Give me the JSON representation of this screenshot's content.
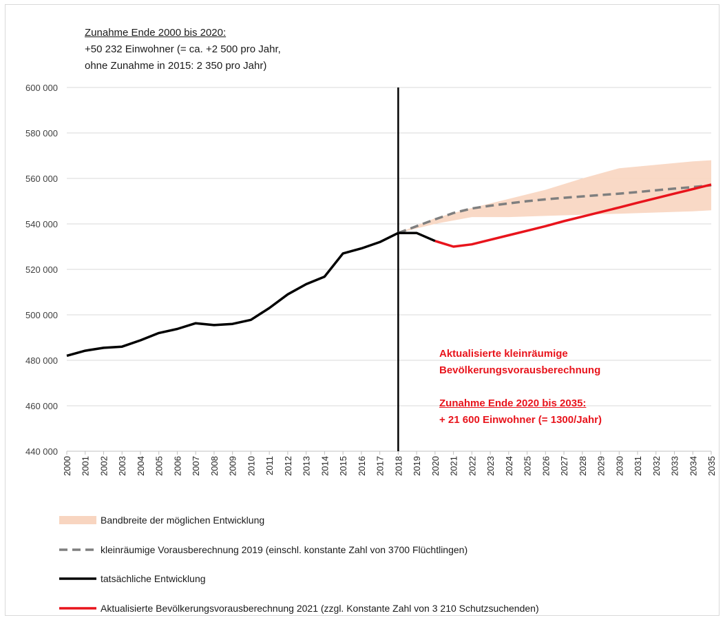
{
  "chart_data": {
    "type": "line",
    "x": [
      2000,
      2001,
      2002,
      2003,
      2004,
      2005,
      2006,
      2007,
      2008,
      2009,
      2010,
      2011,
      2012,
      2013,
      2014,
      2015,
      2016,
      2017,
      2018,
      2019,
      2020,
      2021,
      2022,
      2023,
      2024,
      2025,
      2026,
      2027,
      2028,
      2029,
      2030,
      2031,
      2032,
      2033,
      2034,
      2035
    ],
    "ylim": [
      440000,
      600000
    ],
    "yticks": [
      440000,
      460000,
      480000,
      500000,
      520000,
      540000,
      560000,
      580000,
      600000
    ],
    "ytick_labels": [
      "440 000",
      "460 000",
      "480 000",
      "500 000",
      "520 000",
      "540 000",
      "560 000",
      "580 000",
      "600 000"
    ],
    "grid": "horizontal",
    "vertical_marker_year": 2018,
    "series": [
      {
        "name": "tatsächliche Entwicklung",
        "style": "solid",
        "color": "#000000",
        "points": [
          [
            2000,
            482000
          ],
          [
            2001,
            484200
          ],
          [
            2002,
            485500
          ],
          [
            2003,
            486000
          ],
          [
            2004,
            488800
          ],
          [
            2005,
            492000
          ],
          [
            2006,
            493800
          ],
          [
            2007,
            496300
          ],
          [
            2008,
            495500
          ],
          [
            2009,
            496000
          ],
          [
            2010,
            497800
          ],
          [
            2011,
            503000
          ],
          [
            2012,
            509000
          ],
          [
            2013,
            513500
          ],
          [
            2014,
            516800
          ],
          [
            2015,
            527000
          ],
          [
            2016,
            529200
          ],
          [
            2017,
            532000
          ],
          [
            2018,
            536000
          ],
          [
            2019,
            536000
          ],
          [
            2020,
            532500
          ]
        ]
      },
      {
        "name": "Aktualisierte Bevölkerungsvorausberechnung 2021 (zzgl. Konstante Zahl von 3 210 Schutzsuchenden)",
        "style": "solid",
        "color": "#e8141c",
        "points": [
          [
            2020,
            532500
          ],
          [
            2021,
            530000
          ],
          [
            2022,
            531000
          ],
          [
            2023,
            533000
          ],
          [
            2024,
            535000
          ],
          [
            2025,
            537000
          ],
          [
            2026,
            539000
          ],
          [
            2027,
            541200
          ],
          [
            2028,
            543200
          ],
          [
            2029,
            545200
          ],
          [
            2030,
            547200
          ],
          [
            2031,
            549300
          ],
          [
            2032,
            551300
          ],
          [
            2033,
            553300
          ],
          [
            2034,
            555300
          ],
          [
            2035,
            557300
          ]
        ]
      },
      {
        "name": "kleinräumige Vorausberechnung 2019 (einschl. konstante Zahl von 3700 Flüchtlingen)",
        "style": "dashed",
        "color": "#7f7f7f",
        "points": [
          [
            2018,
            536000
          ],
          [
            2019,
            539000
          ],
          [
            2020,
            542000
          ],
          [
            2021,
            544800
          ],
          [
            2022,
            546800
          ],
          [
            2023,
            548000
          ],
          [
            2024,
            549000
          ],
          [
            2025,
            550000
          ],
          [
            2026,
            550800
          ],
          [
            2027,
            551500
          ],
          [
            2028,
            552100
          ],
          [
            2029,
            552700
          ],
          [
            2030,
            553300
          ],
          [
            2031,
            554000
          ],
          [
            2032,
            554800
          ],
          [
            2033,
            555500
          ],
          [
            2034,
            556200
          ],
          [
            2035,
            557000
          ]
        ]
      }
    ],
    "band": {
      "name": "Bandbreite der möglichen Entwicklung",
      "color": "#f8d5c0",
      "x": [
        2018,
        2020,
        2022,
        2024,
        2026,
        2028,
        2030,
        2032,
        2034,
        2035
      ],
      "upper": [
        536000,
        542500,
        547000,
        551000,
        555000,
        560000,
        564500,
        566000,
        567500,
        568000
      ],
      "lower": [
        536000,
        540000,
        543000,
        543000,
        543500,
        544000,
        544500,
        545000,
        545500,
        546000
      ]
    }
  },
  "annotations": {
    "top_line1": "Zunahme Ende 2000 bis 2020:",
    "top_line2": "+50 232 Einwohner (= ca. +2 500 pro Jahr,",
    "top_line3": "ohne Zunahme in 2015: 2 350 pro Jahr)",
    "red_line1": "Aktualisierte kleinräumige",
    "red_line2": "Bevölkerungsvorausberechnung",
    "red_line3": "Zunahme Ende 2020 bis 2035:",
    "red_line4": "+ 21 600 Einwohner (=  1300/Jahr)"
  },
  "legend": {
    "band": "Bandbreite der möglichen Entwicklung",
    "dashed": "kleinräumige Vorausberechnung 2019 (einschl. konstante Zahl von 3700 Flüchtlingen)",
    "black": "tatsächliche Entwicklung",
    "red": "Aktualisierte Bevölkerungsvorausberechnung 2021 (zzgl. Konstante Zahl von 3 210 Schutzsuchenden)"
  }
}
